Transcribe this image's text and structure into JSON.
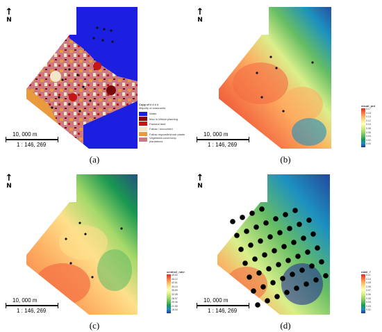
{
  "north_label": "N",
  "scale_distance": "10, 000 m",
  "scale_ratio": "1 : 146, 269",
  "panels": [
    {
      "caption": "(a)",
      "legend": {
        "title": "Copy of  # # # #",
        "subtitle": "Majority of class/units",
        "items": [
          {
            "label": "Water",
            "color": "#1a1fe0"
          },
          {
            "label": "Man in Wheat planning",
            "color": "#7a0b0b"
          },
          {
            "label": "Pastoral land",
            "color": "#c41616"
          },
          {
            "label": "Fallow / uncovered",
            "color": "#f2e6c9"
          },
          {
            "label": "Fallow regrowth/shrub plants",
            "color": "#e89a3c"
          },
          {
            "label": "Vegetation cover/crop plantations",
            "color": "#c97a82"
          }
        ]
      }
    },
    {
      "caption": "(b)",
      "ramp": {
        "title": "visual_prd",
        "subtitle": "# 1_shx/1",
        "ticks": [
          "0.17",
          "0.15",
          "0.13",
          "0.12",
          "0.10",
          "0.08",
          "0.06",
          "0.04",
          "0.02",
          "0.00"
        ]
      }
    },
    {
      "caption": "(c)",
      "ramp": {
        "title": "sentinel_ndvi",
        "subtitle": "Sentinel",
        "ticks": [
          "49.63",
          "46.12",
          "42.61",
          "39.10",
          "35.59",
          "32.08",
          "28.57",
          "25.06",
          "21.55",
          "18.04"
        ]
      }
    },
    {
      "caption": "(d)",
      "ramp": {
        "title": "ndwi_?",
        "subtitle": "1st - ndwi - 2",
        "ticks": [
          "0.11",
          "0.10",
          "0.09",
          "0.08",
          "0.07",
          "0.06",
          "0.05",
          "0.04",
          "0.03",
          "0.02"
        ]
      }
    }
  ],
  "colors": {
    "water": "#1a1fe0",
    "ramp": [
      "#d7301f",
      "#f46d43",
      "#fdae61",
      "#fee08b",
      "#ffffbf",
      "#d9ef8b",
      "#a6d96a",
      "#66bd63",
      "#1a9850",
      "#1d91c0",
      "#253494"
    ]
  }
}
